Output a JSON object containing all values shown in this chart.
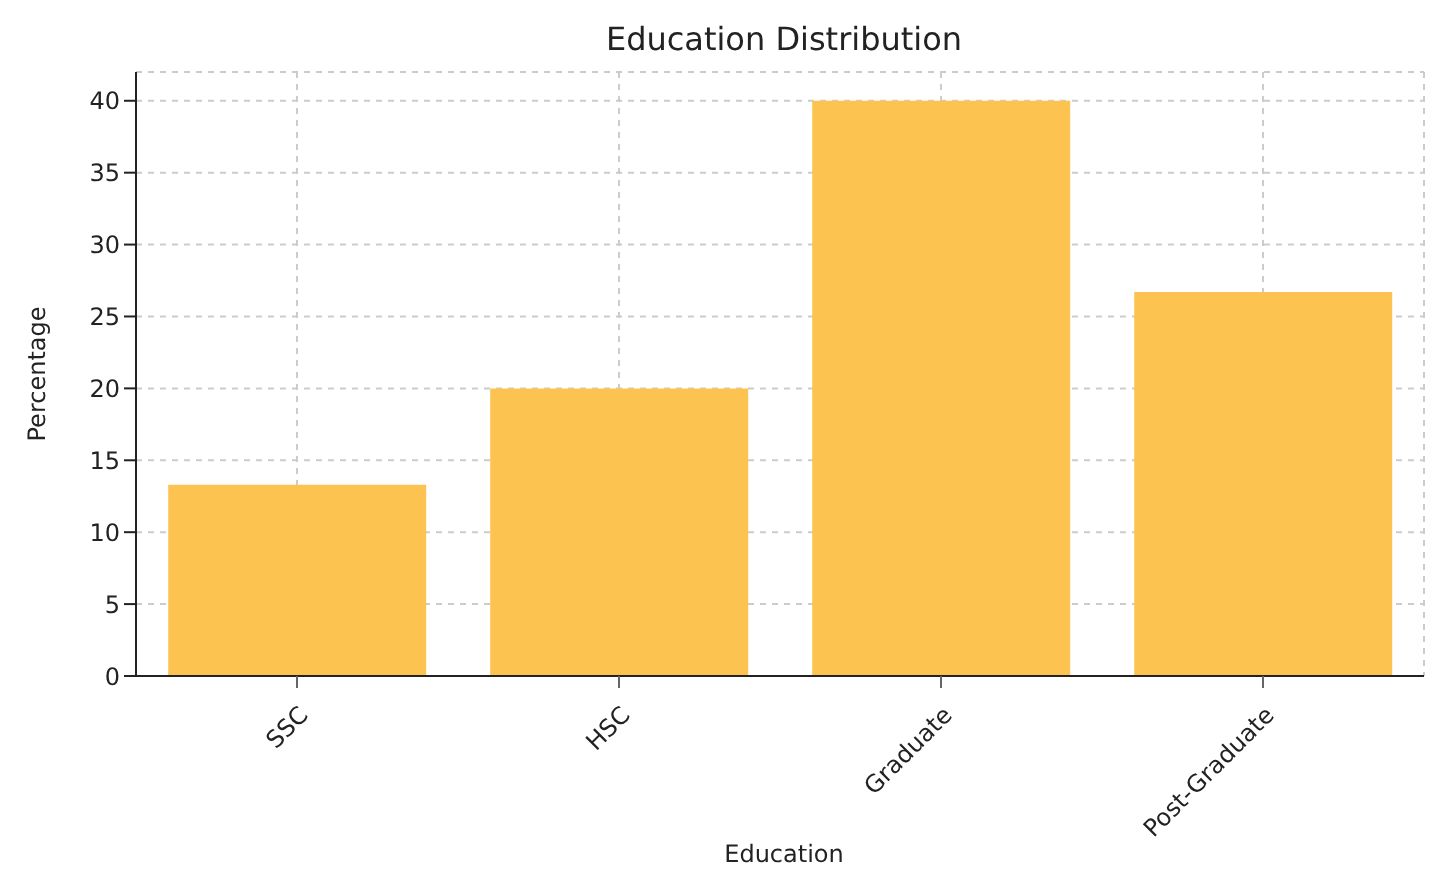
{
  "chart_data": {
    "type": "bar",
    "title": "Education Distribution",
    "xlabel": "Education",
    "ylabel": "Percentage",
    "categories": [
      "SSC",
      "HSC",
      "Graduate",
      "Post-Graduate"
    ],
    "values": [
      13.3,
      20,
      40,
      26.7
    ],
    "color": "#fdc350",
    "ylim": [
      0,
      42
    ],
    "yticks": [
      0,
      5,
      10,
      15,
      20,
      25,
      30,
      35,
      40
    ],
    "grid": true
  }
}
